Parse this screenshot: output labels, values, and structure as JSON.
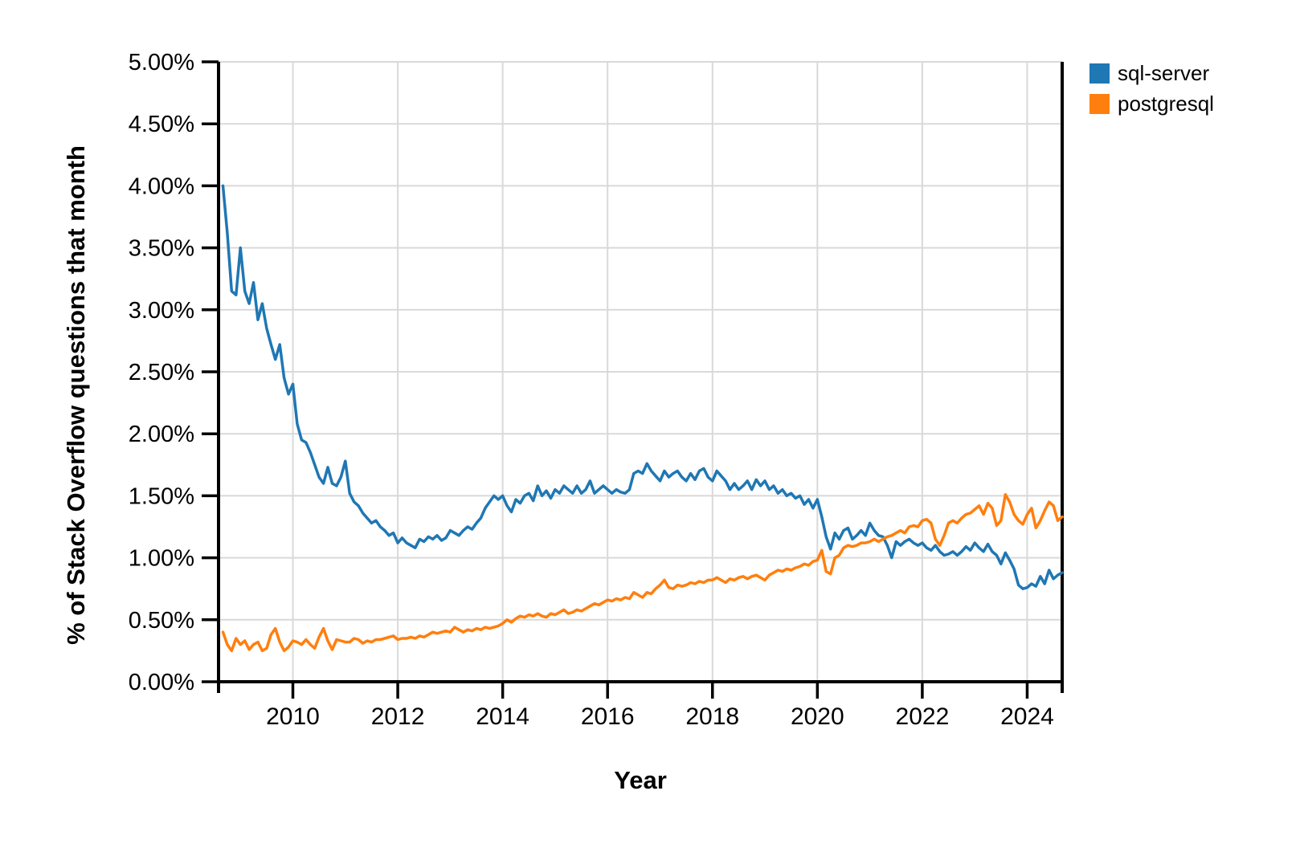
{
  "chart_data": {
    "type": "line",
    "title": "",
    "xlabel": "Year",
    "ylabel": "% of Stack Overflow questions that month",
    "grid": true,
    "legend_position": "top-right-outside",
    "xlim": [
      2008.583,
      2024.667
    ],
    "ylim": [
      0,
      5
    ],
    "x_ticks": [
      2010,
      2012,
      2014,
      2016,
      2018,
      2020,
      2022,
      2024
    ],
    "x_tick_labels": [
      "2010",
      "2012",
      "2014",
      "2016",
      "2018",
      "2020",
      "2022",
      "2024"
    ],
    "y_ticks": [
      0,
      0.5,
      1.0,
      1.5,
      2.0,
      2.5,
      3.0,
      3.5,
      4.0,
      4.5,
      5.0
    ],
    "y_tick_labels": [
      "0.00%",
      "0.50%",
      "1.00%",
      "1.50%",
      "2.00%",
      "2.50%",
      "3.00%",
      "3.50%",
      "4.00%",
      "4.50%",
      "5.00%"
    ],
    "x_start": 2008.6667,
    "x_step": 0.0833333,
    "x_unit": "year (monthly samples)",
    "grid_color": "#d9d9d9",
    "axis_color": "#000000",
    "series": [
      {
        "name": "sql-server",
        "color": "#1f77b4",
        "values": [
          4.0,
          3.62,
          3.15,
          3.12,
          3.5,
          3.15,
          3.05,
          3.22,
          2.92,
          3.05,
          2.85,
          2.72,
          2.6,
          2.72,
          2.45,
          2.32,
          2.4,
          2.08,
          1.95,
          1.93,
          1.85,
          1.75,
          1.65,
          1.6,
          1.73,
          1.6,
          1.58,
          1.65,
          1.78,
          1.52,
          1.45,
          1.42,
          1.36,
          1.32,
          1.28,
          1.3,
          1.25,
          1.22,
          1.18,
          1.2,
          1.12,
          1.16,
          1.12,
          1.1,
          1.08,
          1.15,
          1.13,
          1.17,
          1.15,
          1.18,
          1.14,
          1.16,
          1.22,
          1.2,
          1.18,
          1.22,
          1.25,
          1.23,
          1.28,
          1.32,
          1.4,
          1.45,
          1.5,
          1.47,
          1.5,
          1.42,
          1.37,
          1.47,
          1.44,
          1.5,
          1.52,
          1.46,
          1.58,
          1.5,
          1.54,
          1.48,
          1.55,
          1.52,
          1.58,
          1.55,
          1.52,
          1.58,
          1.52,
          1.55,
          1.62,
          1.52,
          1.55,
          1.58,
          1.55,
          1.52,
          1.55,
          1.53,
          1.52,
          1.55,
          1.68,
          1.7,
          1.68,
          1.76,
          1.7,
          1.66,
          1.62,
          1.7,
          1.65,
          1.68,
          1.7,
          1.65,
          1.62,
          1.68,
          1.63,
          1.7,
          1.72,
          1.65,
          1.62,
          1.7,
          1.66,
          1.62,
          1.55,
          1.6,
          1.55,
          1.58,
          1.62,
          1.55,
          1.63,
          1.58,
          1.62,
          1.55,
          1.58,
          1.52,
          1.55,
          1.5,
          1.52,
          1.48,
          1.5,
          1.43,
          1.47,
          1.4,
          1.47,
          1.33,
          1.17,
          1.07,
          1.2,
          1.15,
          1.22,
          1.24,
          1.15,
          1.18,
          1.22,
          1.18,
          1.28,
          1.22,
          1.18,
          1.17,
          1.1,
          1.0,
          1.13,
          1.1,
          1.13,
          1.15,
          1.12,
          1.1,
          1.12,
          1.08,
          1.06,
          1.1,
          1.05,
          1.02,
          1.03,
          1.05,
          1.02,
          1.05,
          1.09,
          1.06,
          1.12,
          1.08,
          1.05,
          1.11,
          1.05,
          1.02,
          0.95,
          1.04,
          0.98,
          0.91,
          0.78,
          0.75,
          0.76,
          0.79,
          0.77,
          0.85,
          0.79,
          0.9,
          0.83,
          0.86,
          0.88
        ]
      },
      {
        "name": "postgresql",
        "color": "#ff7f0e",
        "values": [
          0.4,
          0.3,
          0.25,
          0.35,
          0.3,
          0.33,
          0.26,
          0.3,
          0.32,
          0.25,
          0.27,
          0.38,
          0.43,
          0.32,
          0.25,
          0.28,
          0.33,
          0.32,
          0.3,
          0.34,
          0.3,
          0.27,
          0.36,
          0.43,
          0.33,
          0.26,
          0.34,
          0.33,
          0.32,
          0.32,
          0.35,
          0.34,
          0.31,
          0.33,
          0.32,
          0.34,
          0.34,
          0.35,
          0.36,
          0.37,
          0.34,
          0.35,
          0.35,
          0.36,
          0.35,
          0.37,
          0.36,
          0.38,
          0.4,
          0.39,
          0.4,
          0.41,
          0.4,
          0.44,
          0.42,
          0.4,
          0.42,
          0.41,
          0.43,
          0.42,
          0.44,
          0.43,
          0.44,
          0.45,
          0.47,
          0.5,
          0.48,
          0.51,
          0.53,
          0.52,
          0.54,
          0.53,
          0.55,
          0.53,
          0.52,
          0.55,
          0.54,
          0.56,
          0.58,
          0.55,
          0.56,
          0.58,
          0.57,
          0.59,
          0.61,
          0.63,
          0.62,
          0.64,
          0.66,
          0.65,
          0.67,
          0.66,
          0.68,
          0.67,
          0.72,
          0.7,
          0.68,
          0.72,
          0.71,
          0.75,
          0.78,
          0.82,
          0.76,
          0.75,
          0.78,
          0.77,
          0.78,
          0.8,
          0.79,
          0.81,
          0.8,
          0.82,
          0.82,
          0.84,
          0.82,
          0.8,
          0.83,
          0.82,
          0.84,
          0.85,
          0.83,
          0.85,
          0.86,
          0.84,
          0.82,
          0.86,
          0.88,
          0.9,
          0.89,
          0.91,
          0.9,
          0.92,
          0.93,
          0.95,
          0.94,
          0.97,
          0.98,
          1.06,
          0.89,
          0.87,
          1.0,
          1.02,
          1.08,
          1.1,
          1.09,
          1.1,
          1.12,
          1.12,
          1.13,
          1.15,
          1.13,
          1.15,
          1.17,
          1.18,
          1.2,
          1.22,
          1.2,
          1.25,
          1.26,
          1.25,
          1.3,
          1.31,
          1.28,
          1.15,
          1.1,
          1.18,
          1.28,
          1.3,
          1.28,
          1.32,
          1.35,
          1.36,
          1.39,
          1.42,
          1.35,
          1.44,
          1.4,
          1.26,
          1.3,
          1.51,
          1.45,
          1.35,
          1.3,
          1.27,
          1.35,
          1.4,
          1.24,
          1.3,
          1.38,
          1.45,
          1.42,
          1.3,
          1.33
        ]
      }
    ]
  }
}
